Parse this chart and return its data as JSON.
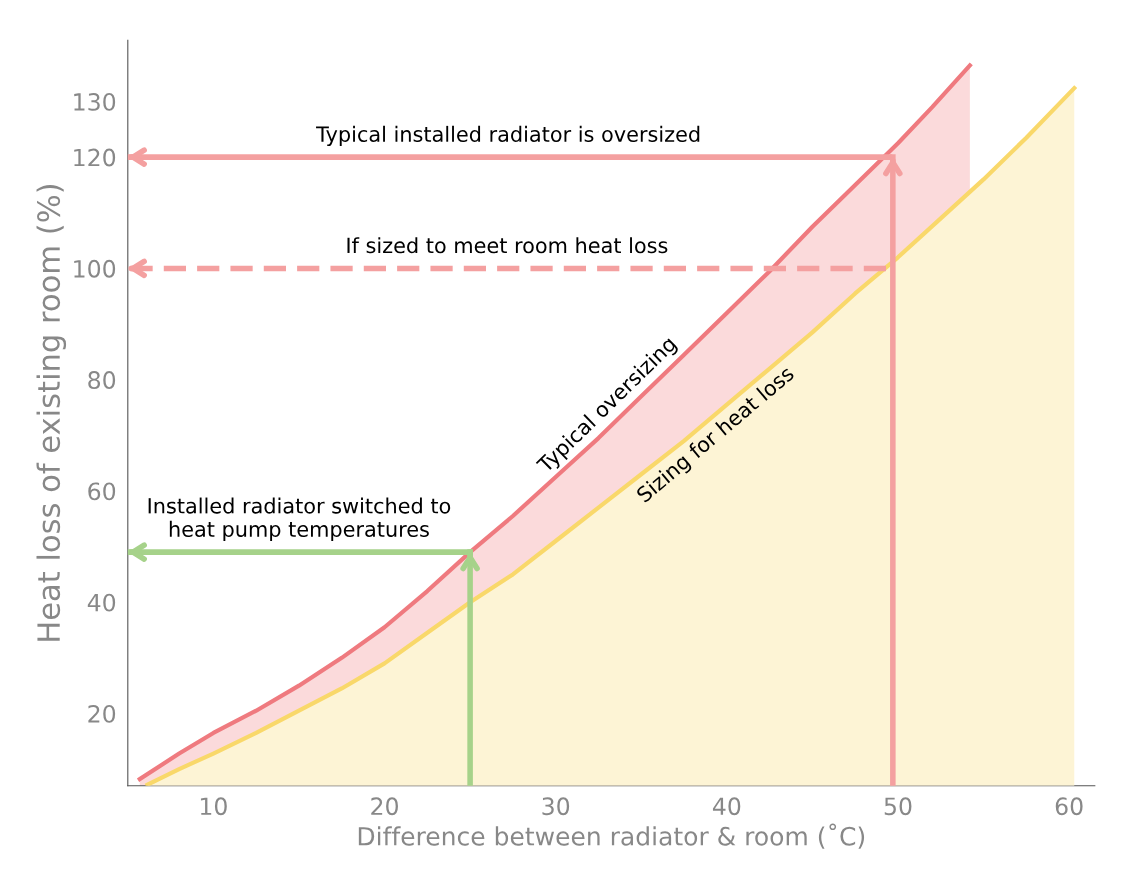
{
  "chart_data": {
    "type": "area",
    "xlabel": "Difference between radiator & room (˚C)",
    "ylabel": "Heat loss of existing room (%)",
    "xlim": [
      5,
      61.5
    ],
    "ylim": [
      7,
      141
    ],
    "xticks": [
      10,
      20,
      30,
      40,
      50,
      60
    ],
    "yticks": [
      20,
      40,
      60,
      80,
      100,
      120,
      130
    ],
    "grid": false,
    "marker": "none",
    "series": [
      {
        "name": "Typical oversizing",
        "color": "#ef7a7f",
        "x": [
          5.7,
          8,
          10,
          12.5,
          15,
          17.5,
          20,
          22.5,
          25,
          27.5,
          30,
          32.5,
          35,
          37.5,
          40,
          42.5,
          45,
          47.5,
          50,
          52,
          54.2
        ],
        "values": [
          8.2,
          12.8,
          16.5,
          20.5,
          25,
          30,
          35.5,
          42,
          49,
          55.5,
          62.5,
          69.5,
          77,
          84.5,
          92,
          99.5,
          107.5,
          115,
          122.5,
          129,
          136.5
        ]
      },
      {
        "name": "Sizing for heat loss",
        "color": "#f9d86a",
        "x": [
          6.15,
          8,
          10,
          12.5,
          15,
          17.5,
          20,
          22.5,
          25,
          27.5,
          30,
          32.5,
          35,
          37.5,
          40,
          42.5,
          45,
          47.5,
          50,
          52.5,
          55,
          57.5,
          60.3
        ],
        "values": [
          7.2,
          10,
          12.8,
          16.5,
          20.5,
          24.5,
          29,
          34.5,
          40,
          45,
          51,
          57,
          63,
          69,
          75.5,
          82,
          88.5,
          95.5,
          102,
          109,
          116,
          123.5,
          132.4
        ]
      },
      {
        "type": "line",
        "color": "#f4a0a0",
        "line_style": "solid",
        "x": [
          49.5,
          5
        ],
        "values": [
          120,
          120
        ]
      },
      {
        "type": "line",
        "color": "#f4a0a0",
        "line_style": "dashed",
        "x": [
          49.3,
          5
        ],
        "values": [
          100,
          100
        ]
      },
      {
        "type": "line",
        "color": "#a6d28a",
        "line_style": "solid",
        "x": [
          25,
          5
        ],
        "values": [
          49,
          49
        ]
      },
      {
        "type": "line",
        "color": "#f4a0a0",
        "line_style": "solid",
        "x": [
          49.7,
          49.7
        ],
        "values": [
          7,
          120
        ]
      },
      {
        "type": "line",
        "color": "#a6d28a",
        "line_style": "solid",
        "x": [
          25,
          25
        ],
        "values": [
          7,
          49
        ]
      }
    ],
    "annotations": [
      "Typical installed radiator is oversized",
      "If sized to meet room heat loss",
      "Installed radiator switched to\nheat pump temperatures"
    ]
  }
}
